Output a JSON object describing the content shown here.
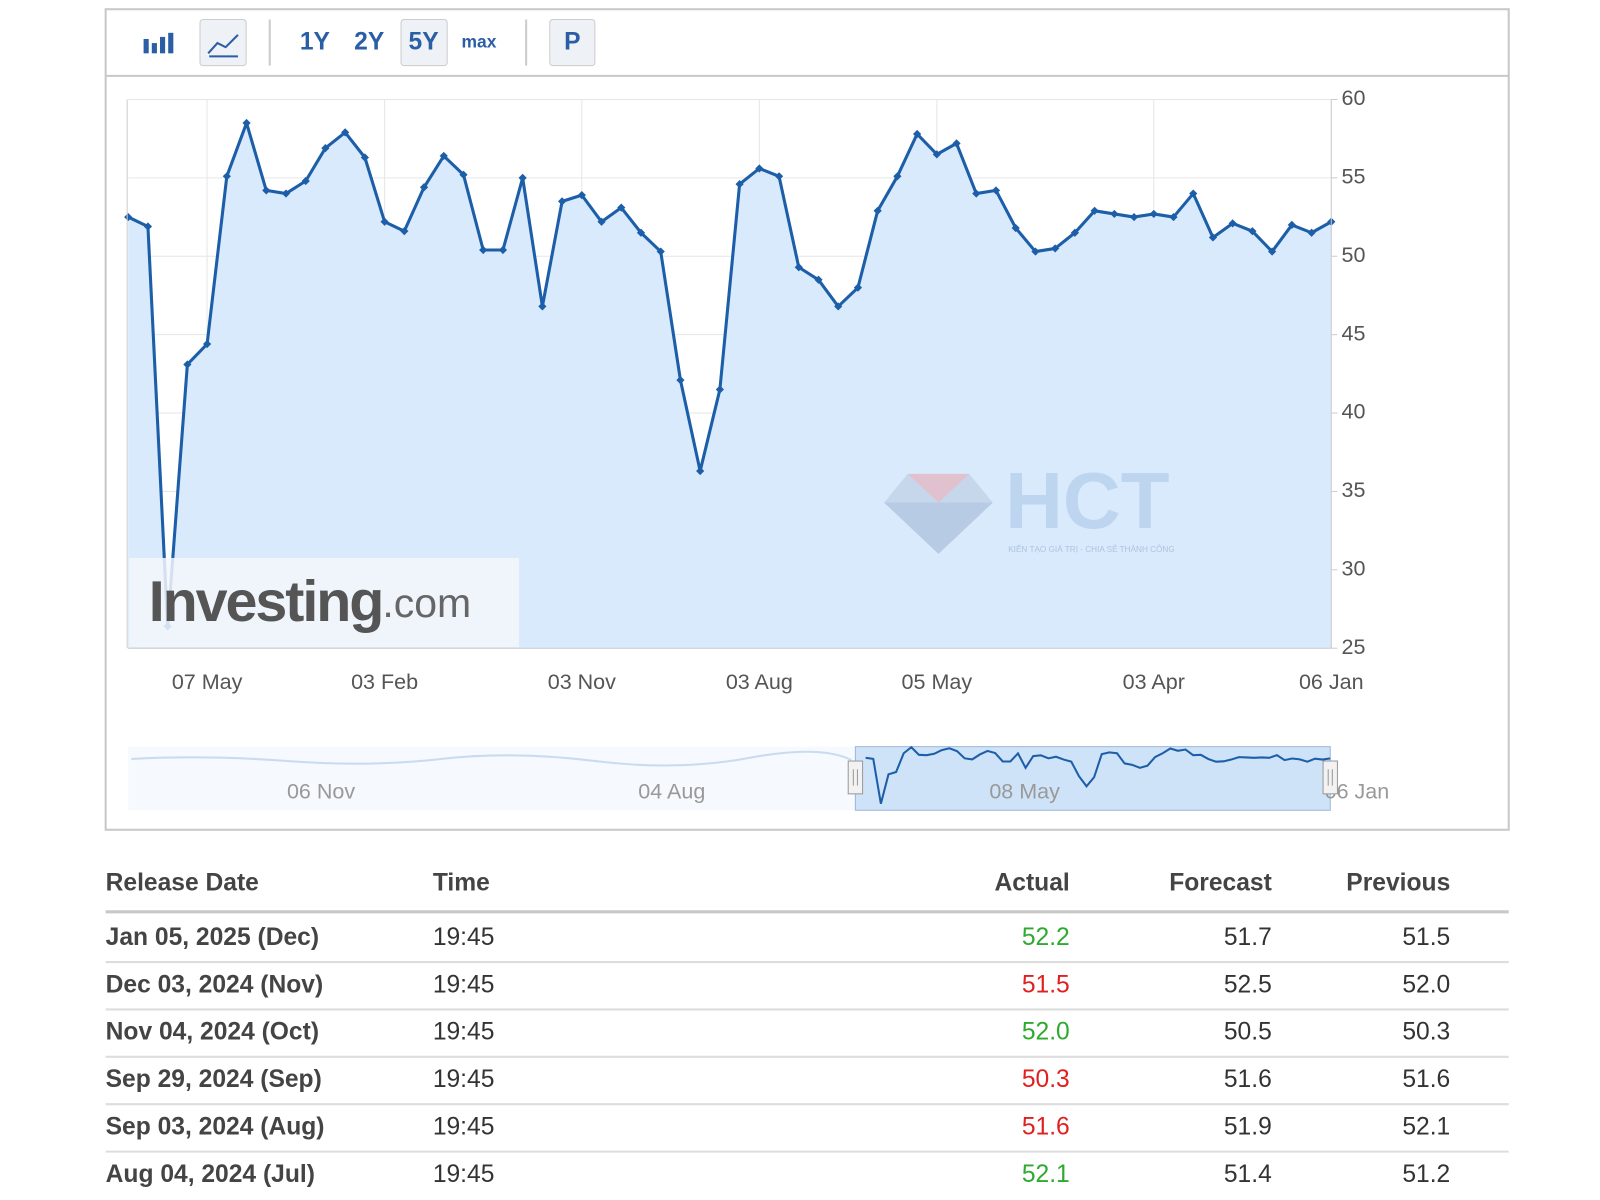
{
  "toolbar": {
    "buttons": [
      "1Y",
      "2Y",
      "5Y",
      "max",
      "P"
    ]
  },
  "chart_data": {
    "type": "line",
    "categories": [
      null,
      null,
      null,
      null,
      "07 May",
      null,
      null,
      null,
      null,
      null,
      null,
      null,
      null,
      "03 Feb",
      null,
      null,
      null,
      null,
      null,
      null,
      null,
      null,
      null,
      "03 Nov",
      null,
      null,
      null,
      null,
      null,
      null,
      null,
      null,
      "03 Aug",
      null,
      null,
      null,
      null,
      null,
      null,
      null,
      null,
      "05 May",
      null,
      null,
      null,
      null,
      null,
      null,
      null,
      null,
      null,
      null,
      "03 Apr",
      null,
      null,
      null,
      null,
      null,
      null,
      null,
      null,
      "06 Jan"
    ],
    "series": [
      {
        "color": "#1c5ea8",
        "fill": "#d8eafc",
        "values": [
          52.5,
          51.9,
          26.4,
          43.1,
          44.4,
          55.1,
          58.5,
          54.2,
          54.0,
          54.8,
          56.9,
          57.9,
          56.3,
          52.2,
          51.6,
          54.4,
          56.4,
          55.2,
          50.4,
          50.4,
          55.0,
          46.8,
          53.5,
          53.9,
          52.2,
          53.1,
          51.5,
          50.3,
          42.1,
          36.3,
          41.5,
          54.6,
          55.6,
          55.1,
          49.3,
          48.5,
          46.8,
          48.0,
          52.9,
          55.1,
          57.8,
          56.5,
          57.2,
          54.0,
          54.2,
          51.8,
          50.3,
          50.5,
          51.5,
          52.9,
          52.7,
          52.5,
          52.7,
          52.5,
          54.0,
          51.2,
          52.1,
          51.6,
          50.3,
          52.0,
          51.5,
          52.2
        ]
      }
    ],
    "ylim": [
      25,
      60
    ],
    "yticks": [
      25,
      30,
      35,
      40,
      45,
      50,
      55,
      60
    ],
    "grid": true,
    "y_axis_side": "right"
  },
  "navigator": {
    "labels": [
      "06 Nov",
      "04 Aug",
      "08 May",
      "06 Jan"
    ]
  },
  "watermarks": {
    "investing": {
      "brand": "Investing",
      "suffix": ".com"
    },
    "hct": {
      "brand": "HCT",
      "tagline": "KIẾN TẠO GIÁ TRỊ - CHIA SẺ THÀNH CÔNG"
    }
  },
  "table": {
    "header": [
      "Release Date",
      "Time",
      "Actual",
      "Forecast",
      "Previous"
    ],
    "rows": [
      [
        "Jan 05, 2025 (Dec)",
        "19:45",
        "52.2",
        "51.7",
        "51.5"
      ],
      [
        "Dec 03, 2024 (Nov)",
        "19:45",
        "51.5",
        "52.5",
        "52.0"
      ],
      [
        "Nov 04, 2024 (Oct)",
        "19:45",
        "52.0",
        "50.5",
        "50.3"
      ],
      [
        "Sep 29, 2024 (Sep)",
        "19:45",
        "50.3",
        "51.6",
        "51.6"
      ],
      [
        "Sep 03, 2024 (Aug)",
        "19:45",
        "51.6",
        "51.9",
        "52.1"
      ],
      [
        "Aug 04, 2024 (Jul)",
        "19:45",
        "52.1",
        "51.4",
        "51.2"
      ]
    ],
    "actual_colors": [
      "#2eaa2e",
      "#e02020",
      "#2eaa2e",
      "#e02020",
      "#e02020",
      "#2eaa2e"
    ]
  }
}
